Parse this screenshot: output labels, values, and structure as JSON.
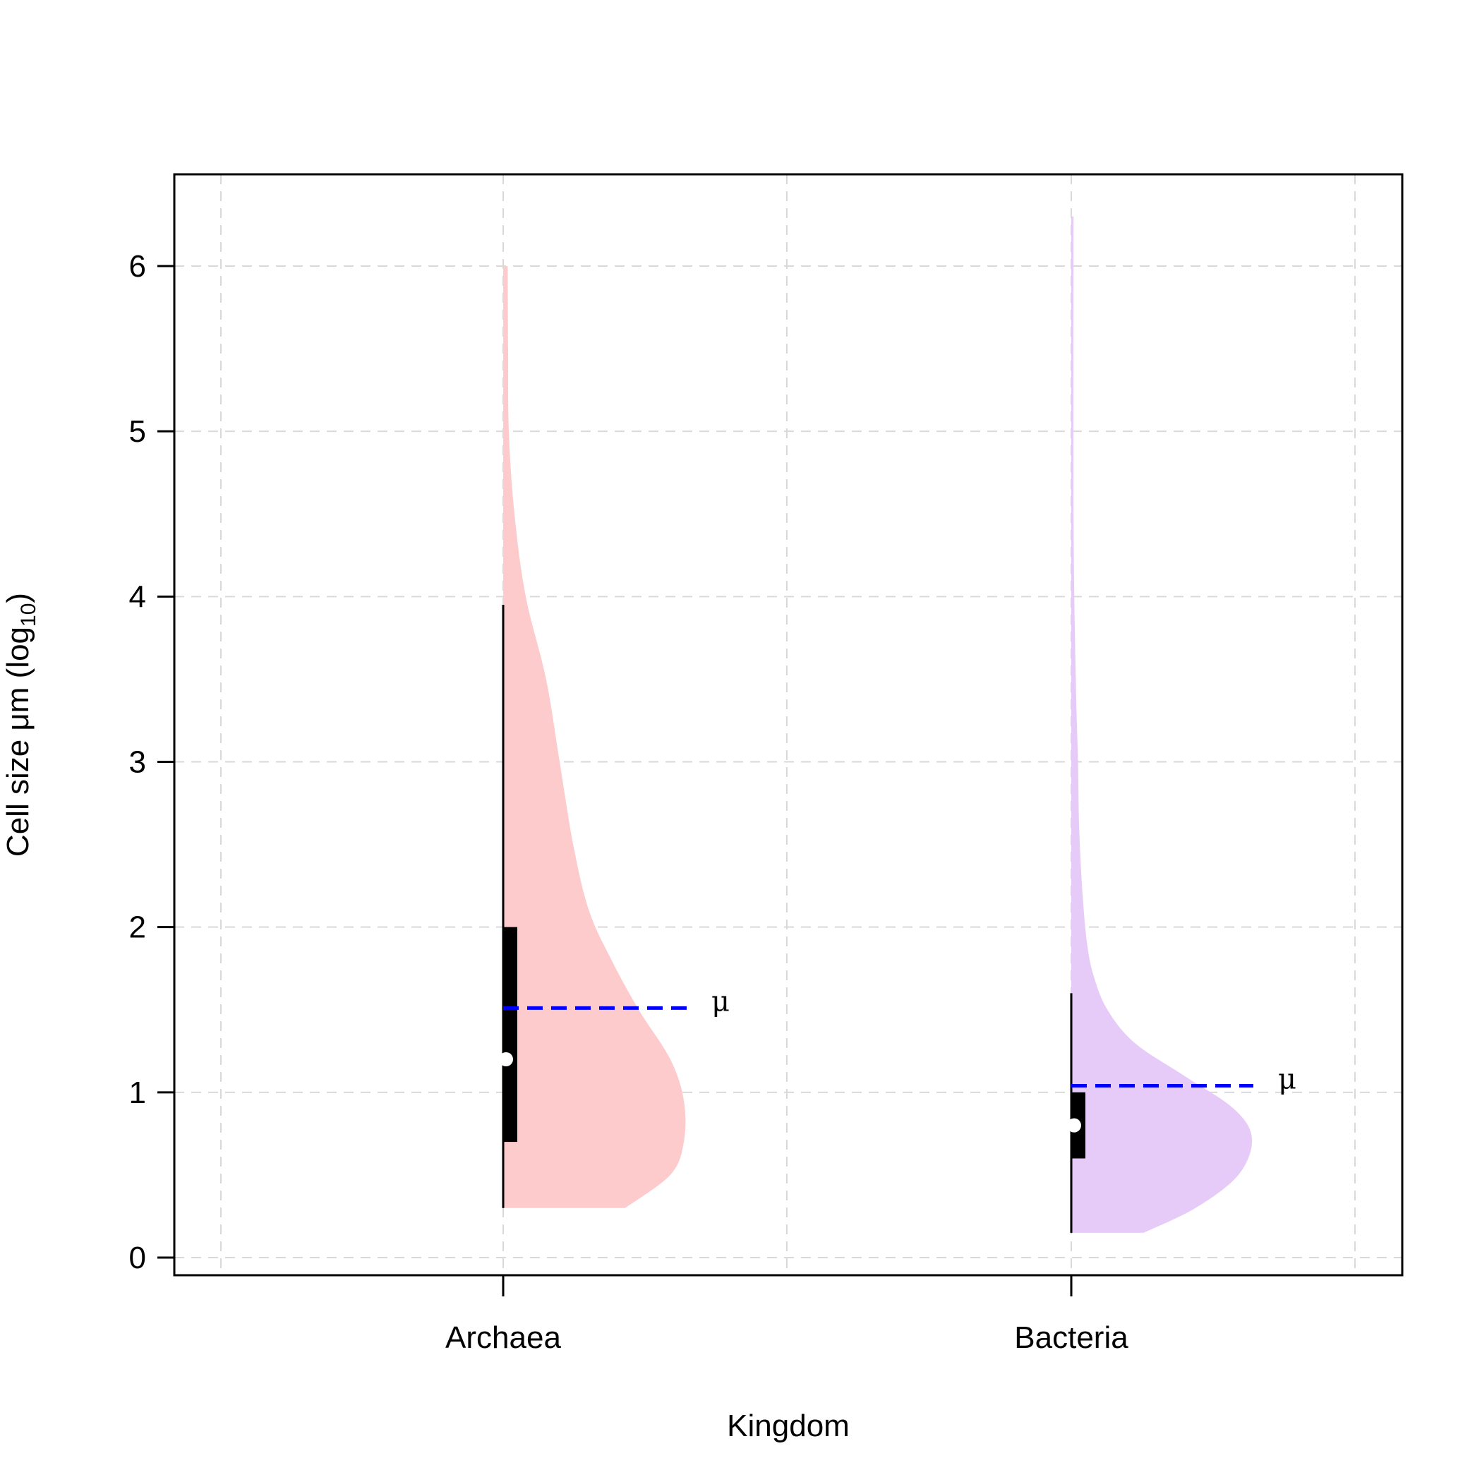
{
  "chart_data": {
    "type": "violin",
    "orientation": "vertical",
    "half_violin": true,
    "xlabel": "Kingdom",
    "ylabel": "Cell size μm (log",
    "ylabel_subscript": "10",
    "ylabel_close": ")",
    "categories": [
      "Archaea",
      "Bacteria"
    ],
    "ylim": [
      -0.1,
      6.55
    ],
    "yticks": [
      0,
      1,
      2,
      3,
      4,
      5,
      6
    ],
    "ytick_labels": [
      "0",
      "1",
      "2",
      "3",
      "4",
      "5",
      "6"
    ],
    "grid": true,
    "mean_marker_label": "μ",
    "colors": {
      "grid": "#d9d9d9",
      "axis": "#000000",
      "mean_line": "#0000ff",
      "median_point": "#ffffff",
      "box": "#000000"
    },
    "series": [
      {
        "name": "Archaea",
        "color": "#fdcbcb",
        "min": 0.3,
        "q1": 0.7,
        "median": 1.2,
        "q3": 2.0,
        "whisker_high": 3.95,
        "max": 6.0,
        "mean": 1.51,
        "density_profile": [
          [
            0.3,
            0.54
          ],
          [
            0.5,
            0.74
          ],
          [
            0.7,
            0.8
          ],
          [
            0.95,
            0.8
          ],
          [
            1.2,
            0.74
          ],
          [
            1.5,
            0.6
          ],
          [
            1.8,
            0.48
          ],
          [
            2.1,
            0.38
          ],
          [
            2.5,
            0.31
          ],
          [
            3.0,
            0.25
          ],
          [
            3.5,
            0.19
          ],
          [
            4.0,
            0.1
          ],
          [
            4.5,
            0.05
          ],
          [
            5.0,
            0.025
          ],
          [
            5.5,
            0.022
          ],
          [
            6.0,
            0.02
          ]
        ]
      },
      {
        "name": "Bacteria",
        "color": "#e6cbf8",
        "min": 0.15,
        "q1": 0.6,
        "median": 0.8,
        "q3": 1.0,
        "whisker_high": 1.6,
        "max": 6.3,
        "mean": 1.04,
        "density_profile": [
          [
            0.15,
            0.32
          ],
          [
            0.3,
            0.55
          ],
          [
            0.5,
            0.74
          ],
          [
            0.72,
            0.8
          ],
          [
            0.9,
            0.72
          ],
          [
            1.1,
            0.5
          ],
          [
            1.3,
            0.28
          ],
          [
            1.5,
            0.16
          ],
          [
            1.7,
            0.1
          ],
          [
            1.9,
            0.07
          ],
          [
            2.2,
            0.05
          ],
          [
            2.6,
            0.035
          ],
          [
            3.0,
            0.03
          ],
          [
            3.5,
            0.02
          ],
          [
            4.5,
            0.01
          ],
          [
            6.3,
            0.01
          ]
        ]
      }
    ]
  }
}
